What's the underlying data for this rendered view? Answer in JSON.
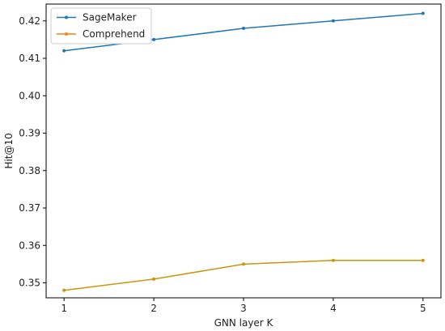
{
  "chart_data": {
    "type": "line",
    "title": "",
    "xlabel": "GNN layer K",
    "ylabel": "Hit@10",
    "x": [
      1,
      2,
      3,
      4,
      5
    ],
    "xticks": [
      "1",
      "2",
      "3",
      "4",
      "5"
    ],
    "yticks": [
      "0.35",
      "0.36",
      "0.37",
      "0.38",
      "0.39",
      "0.40",
      "0.41",
      "0.42"
    ],
    "ylim": [
      0.346,
      0.4245
    ],
    "xlim": [
      0.8,
      5.2
    ],
    "grid": false,
    "legend_position": "top-left",
    "series": [
      {
        "name": "SageMaker",
        "color": "#1f77b4",
        "values": [
          0.412,
          0.415,
          0.418,
          0.42,
          0.422
        ]
      },
      {
        "name": "Comprehend",
        "color": "#ff7f0e",
        "line_color": "#c9960c",
        "values": [
          0.348,
          0.351,
          0.355,
          0.356,
          0.356
        ]
      }
    ]
  }
}
